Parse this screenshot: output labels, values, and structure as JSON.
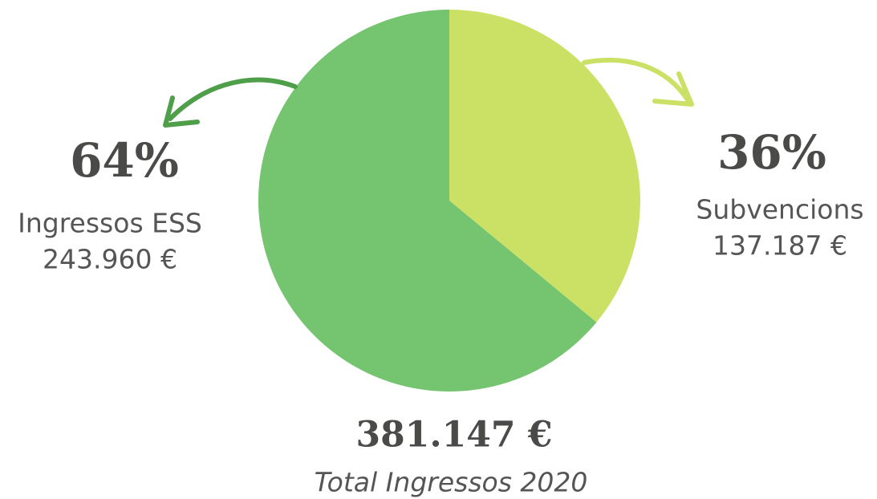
{
  "chart_data": {
    "type": "pie",
    "categories": [
      "Subvencions",
      "Ingressos ESS"
    ],
    "values": [
      36,
      64
    ],
    "value_labels": [
      "36%",
      "64%"
    ],
    "amount_labels": [
      "137.187 €",
      "243.960 €"
    ],
    "colors": [
      "#cbe166",
      "#75c46f"
    ],
    "total_label": "381.147 €",
    "subtitle": "Total Ingressos 2020"
  }
}
